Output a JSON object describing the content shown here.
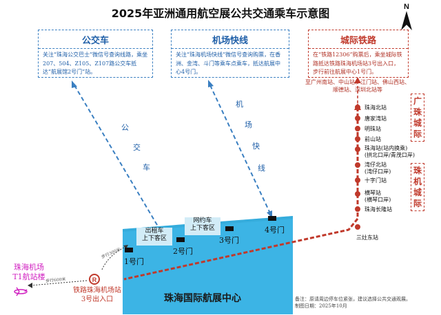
{
  "title": "2025年亚洲通用航空展公共交通乘车示意图",
  "north_label": "N",
  "bus_box": {
    "heading": "公交车",
    "text": "关注“珠海公交巴士”微信号查询线路，乘坐207、504、Z105、Z107路公交车抵达“航展馆2号门”站。"
  },
  "airport_box": {
    "heading": "机场快线",
    "text": "关注“珠海机场快线”微信号查询购票，在香洲、金湾、斗门等乘车点乘车，抵达航展中心4号门。"
  },
  "rail_box": {
    "heading": "城际铁路",
    "text": "在“铁路12306”购票后，乘坐城际铁路抵达铁路珠海机场站3号出入口，步行前往航展中心1号门。"
  },
  "bus_route_label": [
    "公",
    "交",
    "车"
  ],
  "airport_route_label": [
    "机",
    "场",
    "快",
    "线"
  ],
  "gates": [
    "1号门",
    "2号门",
    "3号门",
    "4号门"
  ],
  "zones": {
    "taxi": "出租车\n上下客区",
    "ride_hailing": "网约车\n上下客区"
  },
  "venue_name": "珠海国际航展中心",
  "rail_cities": "至广州南站、中山站、江门站、佛山西站、\n顺德站、深圳北站等",
  "stations": [
    "珠海北站",
    "唐家湾站",
    "明珠站",
    "前山站",
    "珠海站(站内换乘)\n(拱北口岸/青茂口岸)",
    "湾仔北站\n(湾仔口岸)",
    "十字门站",
    "横琴站\n(横琴口岸)",
    "珠海长隆站"
  ],
  "sanzao_station": "三灶东站",
  "line_labels": {
    "guangzhu": "广珠城际",
    "zhuji": "珠机城际"
  },
  "terminal_label": "珠海机场\nT1航站楼",
  "rail_exit_label": "铁路珠海机场站\n3号出入口",
  "walk_300": "步行300米",
  "walk_600": "步行600米",
  "note": "备注：原请周边停车位紧张，建议选择公共交通观展。\n制图日期：2025年10月",
  "colors": {
    "bus_blue": "#3a7fc1",
    "rail_red": "#c0392b",
    "venue_blue": "#3cb4e5",
    "terminal_magenta": "#d020c0"
  }
}
